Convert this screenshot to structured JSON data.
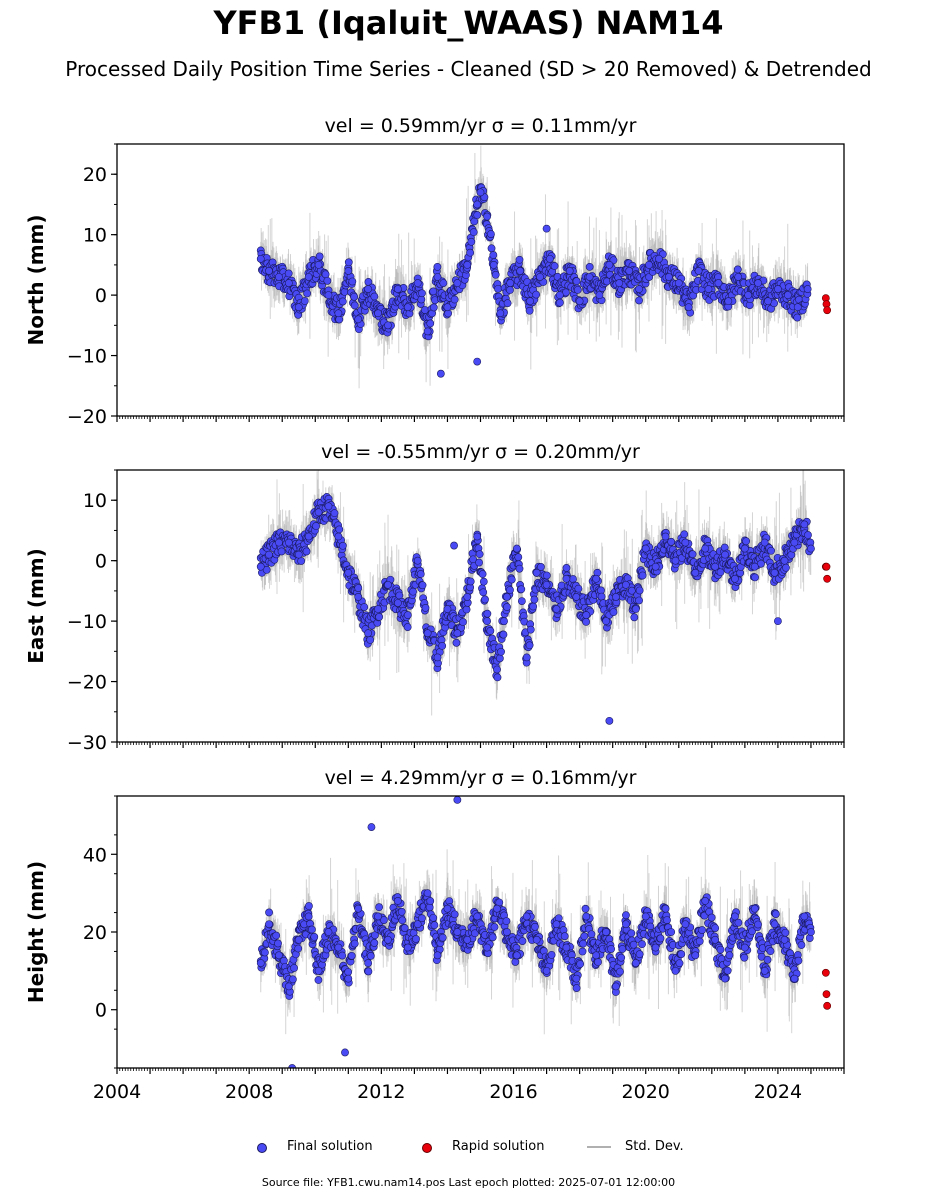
{
  "title": "YFB1 (Iqaluit_WAAS) NAM14",
  "subtitle": "Processed Daily Position Time Series - Cleaned (SD > 20 Removed) & Detrended",
  "colors": {
    "final_fill": "#4a4af5",
    "final_edge": "#1a1a60",
    "rapid_fill": "#e8000b",
    "stddev": "#b0b0b0",
    "axis": "#000000"
  },
  "legend": {
    "final_label": "Final solution",
    "rapid_label": "Rapid solution",
    "stddev_label": "Std. Dev."
  },
  "footer": "Source file: YFB1.cwu.nam14.pos  Last epoch plotted: 2025-07-01 12:00:00",
  "chart_data": [
    {
      "type": "scatter",
      "title_vel": "vel = 0.59mm/yr",
      "title_sigma": "σ = 0.11mm/yr",
      "ylabel": "North (mm)",
      "xlim": [
        2004.0,
        2026.0
      ],
      "ylim": [
        -20,
        25
      ],
      "yticks": [
        -20,
        -10,
        0,
        10,
        20
      ],
      "ytick_labels": [
        "−20",
        "−10",
        "0",
        "10",
        "20"
      ],
      "xticks": [],
      "xtick_labels": [],
      "final_series": {
        "x": [
          2008.35,
          2008.6,
          2008.9,
          2009.2,
          2009.5,
          2009.8,
          2010.1,
          2010.4,
          2010.7,
          2011.0,
          2011.3,
          2011.6,
          2011.9,
          2012.2,
          2012.5,
          2012.8,
          2013.1,
          2013.4,
          2013.7,
          2014.0,
          2014.3,
          2014.6,
          2014.9,
          2015.0,
          2015.2,
          2015.4,
          2015.6,
          2015.9,
          2016.2,
          2016.5,
          2016.8,
          2017.1,
          2017.4,
          2017.7,
          2018.0,
          2018.3,
          2018.6,
          2018.9,
          2019.2,
          2019.5,
          2019.8,
          2020.1,
          2020.4,
          2020.7,
          2021.0,
          2021.3,
          2021.6,
          2021.9,
          2022.2,
          2022.5,
          2022.8,
          2023.1,
          2023.4,
          2023.7,
          2024.0,
          2024.3,
          2024.6,
          2024.9
        ],
        "y": [
          6,
          4,
          3,
          2,
          -2,
          3,
          5,
          0,
          -3,
          4,
          -4,
          1,
          -3,
          -5,
          1,
          -2,
          2,
          -6,
          3,
          -2,
          2,
          5,
          15,
          17,
          13,
          5,
          -3,
          2,
          4,
          -1,
          3,
          6,
          0,
          4,
          -1,
          3,
          0,
          5,
          2,
          4,
          1,
          5,
          6,
          3,
          2,
          -2,
          4,
          1,
          2,
          -1,
          3,
          0,
          2,
          -1,
          1,
          0,
          -2,
          1
        ]
      },
      "rapid_series": {
        "x": [
          2025.45,
          2025.47,
          2025.49
        ],
        "y": [
          -0.5,
          -1.5,
          -2.5
        ]
      },
      "outliers": {
        "x": [
          2013.8,
          2014.9,
          2017.0
        ],
        "y": [
          -13,
          -11,
          11
        ]
      }
    },
    {
      "type": "scatter",
      "title_vel": "vel = -0.55mm/yr",
      "title_sigma": "σ = 0.20mm/yr",
      "ylabel": "East (mm)",
      "xlim": [
        2004.0,
        2026.0
      ],
      "ylim": [
        -30,
        15
      ],
      "yticks": [
        -30,
        -20,
        -10,
        0,
        10
      ],
      "ytick_labels": [
        "−30",
        "−20",
        "−10",
        "0",
        "10"
      ],
      "xticks": [],
      "xtick_labels": [],
      "final_series": {
        "x": [
          2008.35,
          2008.6,
          2008.9,
          2009.2,
          2009.5,
          2009.8,
          2010.1,
          2010.4,
          2010.7,
          2011.0,
          2011.3,
          2011.6,
          2011.9,
          2012.2,
          2012.5,
          2012.8,
          2013.1,
          2013.4,
          2013.7,
          2014.0,
          2014.3,
          2014.6,
          2014.9,
          2015.2,
          2015.5,
          2015.8,
          2016.1,
          2016.4,
          2016.7,
          2017.0,
          2017.3,
          2017.6,
          2017.9,
          2018.2,
          2018.5,
          2018.8,
          2019.1,
          2019.4,
          2019.7,
          2020.0,
          2020.3,
          2020.6,
          2020.9,
          2021.2,
          2021.5,
          2021.8,
          2022.1,
          2022.4,
          2022.7,
          2023.0,
          2023.3,
          2023.6,
          2023.9,
          2024.2,
          2024.5,
          2024.8,
          2025.0
        ],
        "y": [
          -1,
          1,
          3,
          3,
          1,
          4,
          8,
          9,
          4,
          -2,
          -6,
          -12,
          -8,
          -4,
          -7,
          -9,
          0,
          -12,
          -16,
          -8,
          -12,
          -6,
          4,
          -10,
          -18,
          -6,
          2,
          -16,
          -2,
          -4,
          -8,
          -3,
          -6,
          -9,
          -3,
          -10,
          -6,
          -4,
          -8,
          2,
          -1,
          4,
          0,
          3,
          -2,
          2,
          -1,
          1,
          -3,
          2,
          -1,
          3,
          -2,
          0,
          3,
          6,
          2
        ]
      },
      "rapid_series": {
        "x": [
          2025.45,
          2025.47,
          2025.49
        ],
        "y": [
          -1,
          -1,
          -3
        ]
      },
      "outliers": {
        "x": [
          2014.2,
          2018.9,
          2024.0
        ],
        "y": [
          2.5,
          -26.5,
          -10
        ]
      }
    },
    {
      "type": "scatter",
      "title_vel": "vel = 4.29mm/yr",
      "title_sigma": "σ = 0.16mm/yr",
      "ylabel": "Height (mm)",
      "xlim": [
        2004.0,
        2026.0
      ],
      "ylim": [
        -15,
        55
      ],
      "yticks": [
        0,
        20,
        40
      ],
      "ytick_labels": [
        "0",
        "20",
        "40"
      ],
      "xticks": [
        2004,
        2008,
        2012,
        2016,
        2020,
        2024
      ],
      "xtick_labels": [
        "2004",
        "2008",
        "2012",
        "2016",
        "2020",
        "2024"
      ],
      "final_series": {
        "x": [
          2008.35,
          2008.6,
          2008.9,
          2009.2,
          2009.5,
          2009.8,
          2010.1,
          2010.4,
          2010.7,
          2011.0,
          2011.3,
          2011.6,
          2011.9,
          2012.2,
          2012.5,
          2012.8,
          2013.1,
          2013.4,
          2013.7,
          2014.0,
          2014.3,
          2014.6,
          2014.9,
          2015.2,
          2015.5,
          2015.8,
          2016.1,
          2016.4,
          2016.7,
          2017.0,
          2017.3,
          2017.6,
          2017.9,
          2018.2,
          2018.5,
          2018.8,
          2019.1,
          2019.4,
          2019.7,
          2020.0,
          2020.3,
          2020.6,
          2020.9,
          2021.2,
          2021.5,
          2021.8,
          2022.1,
          2022.4,
          2022.7,
          2023.0,
          2023.3,
          2023.6,
          2023.9,
          2024.2,
          2024.5,
          2024.8,
          2025.0
        ],
        "y": [
          12,
          22,
          14,
          6,
          18,
          24,
          10,
          20,
          16,
          8,
          26,
          12,
          24,
          18,
          28,
          16,
          22,
          30,
          14,
          26,
          20,
          18,
          24,
          16,
          26,
          20,
          14,
          24,
          18,
          10,
          22,
          16,
          8,
          24,
          14,
          20,
          6,
          22,
          12,
          24,
          16,
          26,
          10,
          22,
          14,
          28,
          18,
          8,
          24,
          16,
          26,
          10,
          22,
          18,
          8,
          24,
          20
        ]
      },
      "rapid_series": {
        "x": [
          2025.45,
          2025.47,
          2025.49
        ],
        "y": [
          9.5,
          4,
          1
        ]
      },
      "outliers": {
        "x": [
          2011.7,
          2014.3,
          2009.3,
          2010.9
        ],
        "y": [
          47,
          54,
          -15,
          -11
        ]
      }
    }
  ]
}
